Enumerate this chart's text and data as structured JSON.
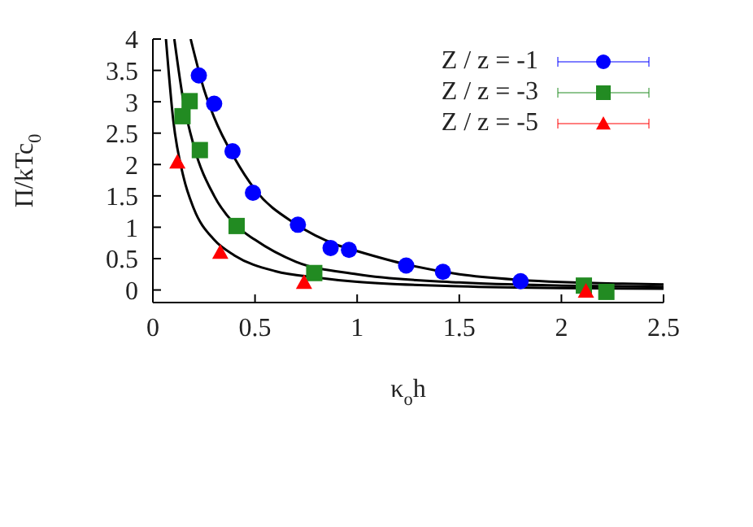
{
  "chart_data": {
    "type": "scatter",
    "xlabel": "κ$_{o}$h",
    "ylabel": "Π/kTc$_{0}$",
    "xlim": [
      0,
      2.5
    ],
    "ylim": [
      -0.2,
      4
    ],
    "xticks": [
      0,
      0.5,
      1,
      1.5,
      2,
      2.5
    ],
    "yticks": [
      0,
      0.5,
      1,
      1.5,
      2,
      2.5,
      3,
      3.5,
      4
    ],
    "grid": false,
    "legend": "top right",
    "series": [
      {
        "name": "Z / z = -1",
        "color": "#0000ff",
        "marker": "circle",
        "x": [
          0.225,
          0.3,
          0.39,
          0.49,
          0.71,
          0.87,
          0.96,
          1.24,
          1.42,
          1.8
        ],
        "values": [
          3.42,
          2.97,
          2.21,
          1.55,
          1.04,
          0.67,
          0.64,
          0.39,
          0.29,
          0.14
        ]
      },
      {
        "name": "Z / z = -3",
        "color": "#228b22",
        "marker": "square",
        "x": [
          0.145,
          0.18,
          0.23,
          0.41,
          0.79,
          2.11,
          2.22
        ],
        "values": [
          2.77,
          3.01,
          2.23,
          1.02,
          0.27,
          0.07,
          -0.03
        ]
      },
      {
        "name": "Z / z = -5",
        "color": "#ff0000",
        "marker": "triangle",
        "x": [
          0.12,
          0.33,
          0.74,
          2.12
        ],
        "values": [
          2.04,
          0.6,
          0.12,
          -0.02
        ]
      },
      {
        "type": "line",
        "color": "#000000",
        "marker": "none",
        "x": [
          0.185,
          0.25,
          0.3,
          0.4,
          0.5,
          0.7,
          0.9,
          1.0,
          1.25,
          1.5,
          1.8,
          2.3,
          2.5
        ],
        "values": [
          4,
          3.2,
          2.75,
          2.1,
          1.6,
          1.05,
          0.72,
          0.62,
          0.4,
          0.25,
          0.16,
          0.1,
          0.09
        ]
      },
      {
        "type": "line",
        "color": "#000000",
        "marker": "none",
        "x": [
          0.105,
          0.15,
          0.2,
          0.3,
          0.4,
          0.5,
          0.7,
          1.0,
          1.5,
          2.0,
          2.5
        ],
        "values": [
          4,
          3.0,
          2.3,
          1.5,
          1.05,
          0.8,
          0.45,
          0.25,
          0.12,
          0.07,
          0.05
        ]
      },
      {
        "type": "line",
        "color": "#000000",
        "marker": "none",
        "x": [
          0.064,
          0.1,
          0.15,
          0.2,
          0.3,
          0.4,
          0.6,
          0.8,
          1.0,
          1.5,
          2.0,
          2.5
        ],
        "values": [
          4,
          2.7,
          1.8,
          1.3,
          0.8,
          0.55,
          0.3,
          0.2,
          0.13,
          0.06,
          0.03,
          0.02
        ]
      }
    ]
  }
}
